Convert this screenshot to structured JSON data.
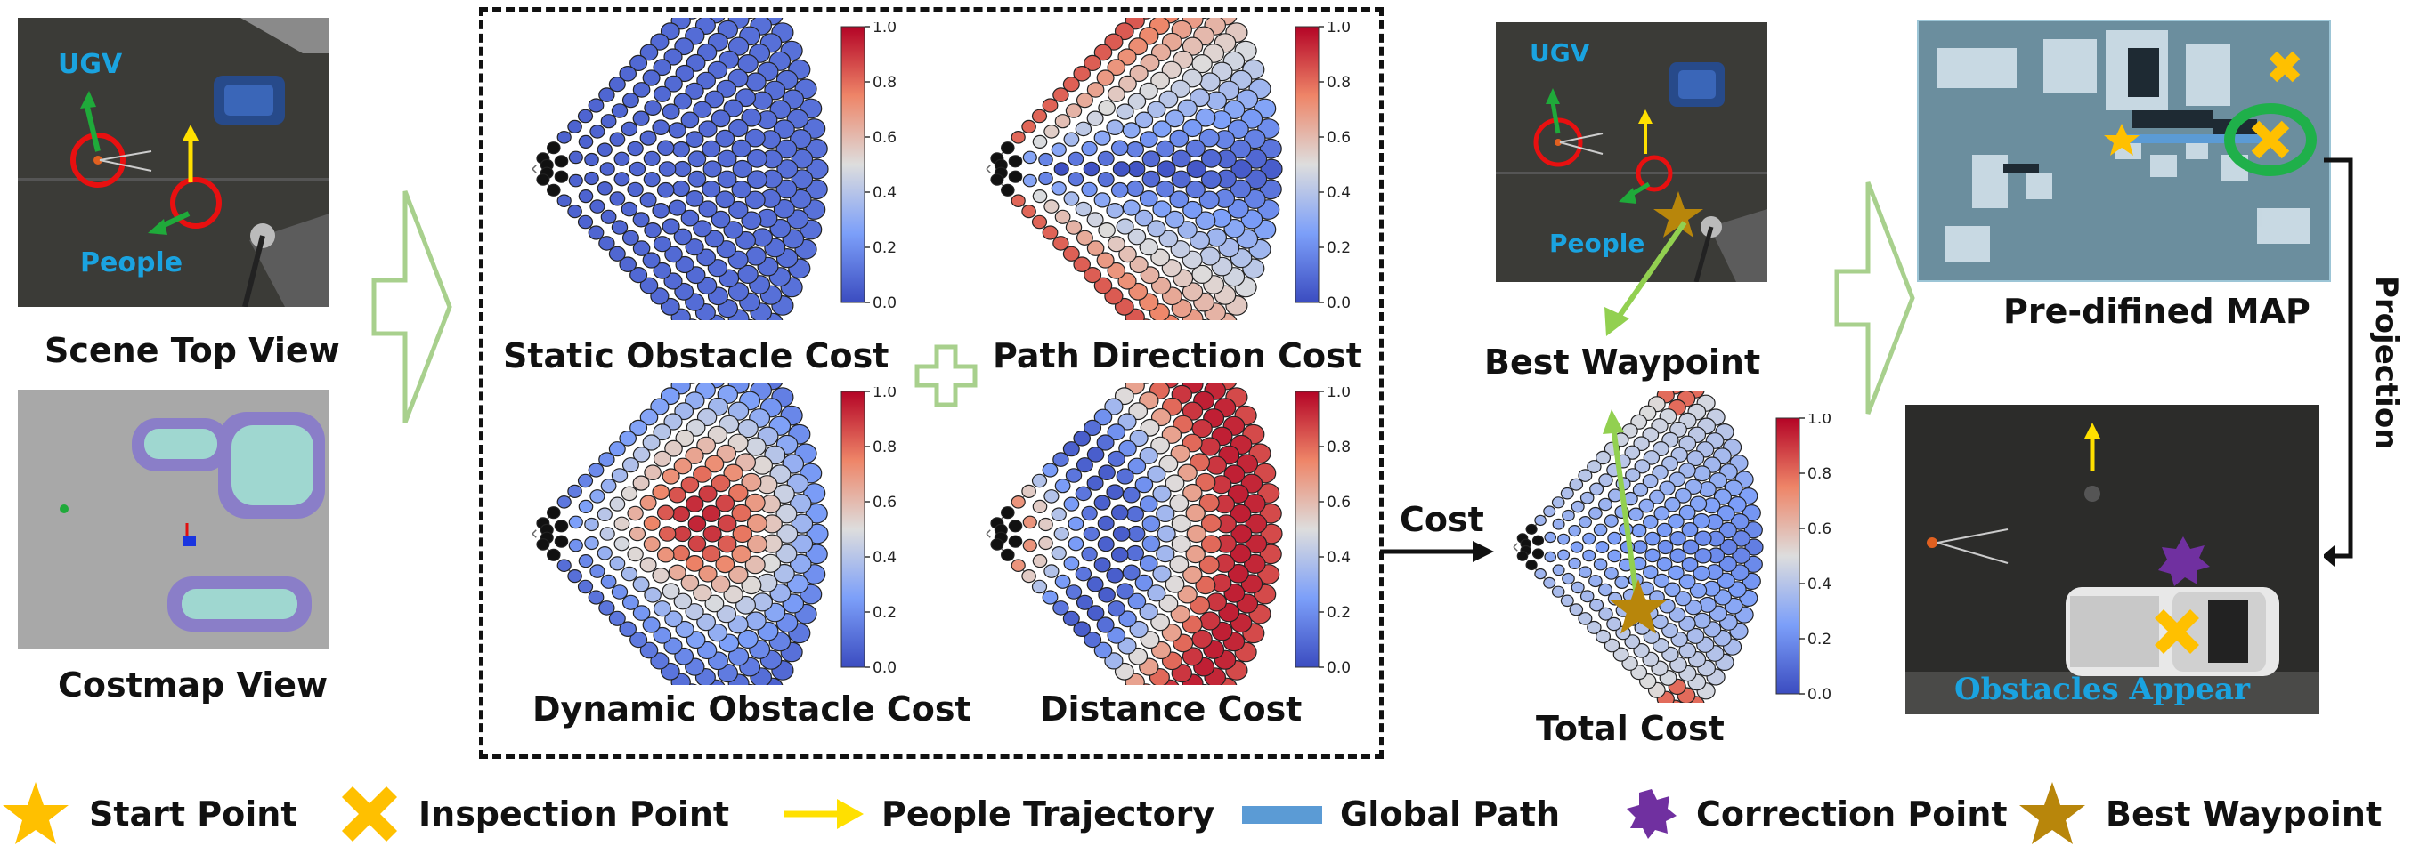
{
  "left": {
    "scene_label": "Scene Top View",
    "costmap_label": "Costmap View",
    "ugv_label": "UGV",
    "people_label": "People"
  },
  "costs": {
    "static": "Static Obstacle Cost",
    "path": "Path Direction Cost",
    "dynamic": "Dynamic Obstacle Cost",
    "distance": "Distance Cost",
    "total": "Total Cost"
  },
  "colorbar_ticks": [
    "1.0",
    "0.8",
    "0.6",
    "0.4",
    "0.2",
    "0.0"
  ],
  "middle": {
    "ugv_label": "UGV",
    "people_label": "People",
    "best_waypoint": "Best Waypoint",
    "cost_arrow": "Cost"
  },
  "right": {
    "map_label": "Pre-difined MAP",
    "projection": "Projection",
    "obstacles": "Obstacles Appear"
  },
  "legend": {
    "start": "Start Point",
    "inspection": "Inspection Point",
    "people": "People Trajectory",
    "global": "Global Path",
    "correction": "Correction Point",
    "best": "Best Waypoint"
  },
  "colors": {
    "arrow_green": "#a8d08d",
    "star_yellow": "#ffc000",
    "best_brown": "#b8860b",
    "correction_purple": "#7030a0",
    "path_blue": "#5b9bd5",
    "ring_red": "#e81010",
    "ugv_blue": "#1aa3e0"
  }
}
